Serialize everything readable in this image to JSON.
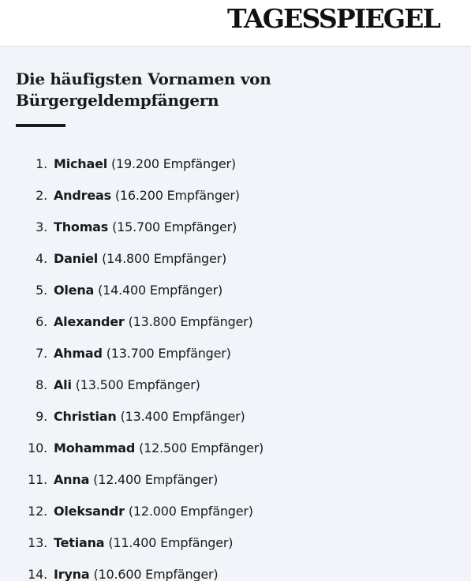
{
  "header": {
    "logo": "TAGESSPIEGEL"
  },
  "article": {
    "title": "Die häufigsten Vornamen von Bürgergeldempfängern",
    "items": [
      {
        "rank": "1.",
        "name": "Michael",
        "detail": "(19.200 Empfänger)"
      },
      {
        "rank": "2.",
        "name": "Andreas",
        "detail": "(16.200 Empfänger)"
      },
      {
        "rank": "3.",
        "name": "Thomas",
        "detail": "(15.700 Empfänger)"
      },
      {
        "rank": "4.",
        "name": "Daniel",
        "detail": "(14.800 Empfänger)"
      },
      {
        "rank": "5.",
        "name": "Olena",
        "detail": "(14.400 Empfänger)"
      },
      {
        "rank": "6.",
        "name": "Alexander",
        "detail": "(13.800 Empfänger)"
      },
      {
        "rank": "7.",
        "name": "Ahmad",
        "detail": "(13.700 Empfänger)"
      },
      {
        "rank": "8.",
        "name": "Ali",
        "detail": "(13.500 Empfänger)"
      },
      {
        "rank": "9.",
        "name": "Christian",
        "detail": "(13.400 Empfänger)"
      },
      {
        "rank": "10.",
        "name": "Mohammad",
        "detail": "(12.500 Empfänger)"
      },
      {
        "rank": "11.",
        "name": "Anna",
        "detail": "(12.400 Empfänger)"
      },
      {
        "rank": "12.",
        "name": "Oleksandr",
        "detail": "(12.000 Empfänger)"
      },
      {
        "rank": "13.",
        "name": "Tetiana",
        "detail": "(11.400 Empfänger)"
      },
      {
        "rank": "14.",
        "name": "Iryna",
        "detail": "(10.600 Empfänger)"
      }
    ]
  }
}
